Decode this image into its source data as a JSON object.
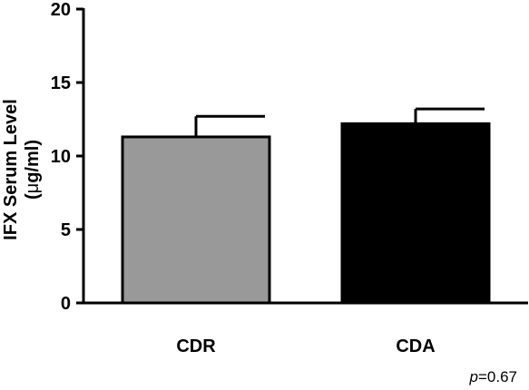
{
  "chart_data": {
    "type": "bar",
    "categories": [
      "CDR",
      "CDA"
    ],
    "values": [
      11.3,
      12.2
    ],
    "errors": [
      1.4,
      1.0
    ],
    "colors": [
      "#999999",
      "#000000"
    ],
    "ylabel_line1": "IFX Serum Level",
    "ylabel_mu": "μ",
    "ylabel_line2_rest": "g/ml)",
    "ylim": [
      0,
      20
    ],
    "yticks": [
      "0",
      "5",
      "10",
      "15",
      "20"
    ],
    "annotation_p": "p",
    "annotation_value": "=0.67"
  }
}
